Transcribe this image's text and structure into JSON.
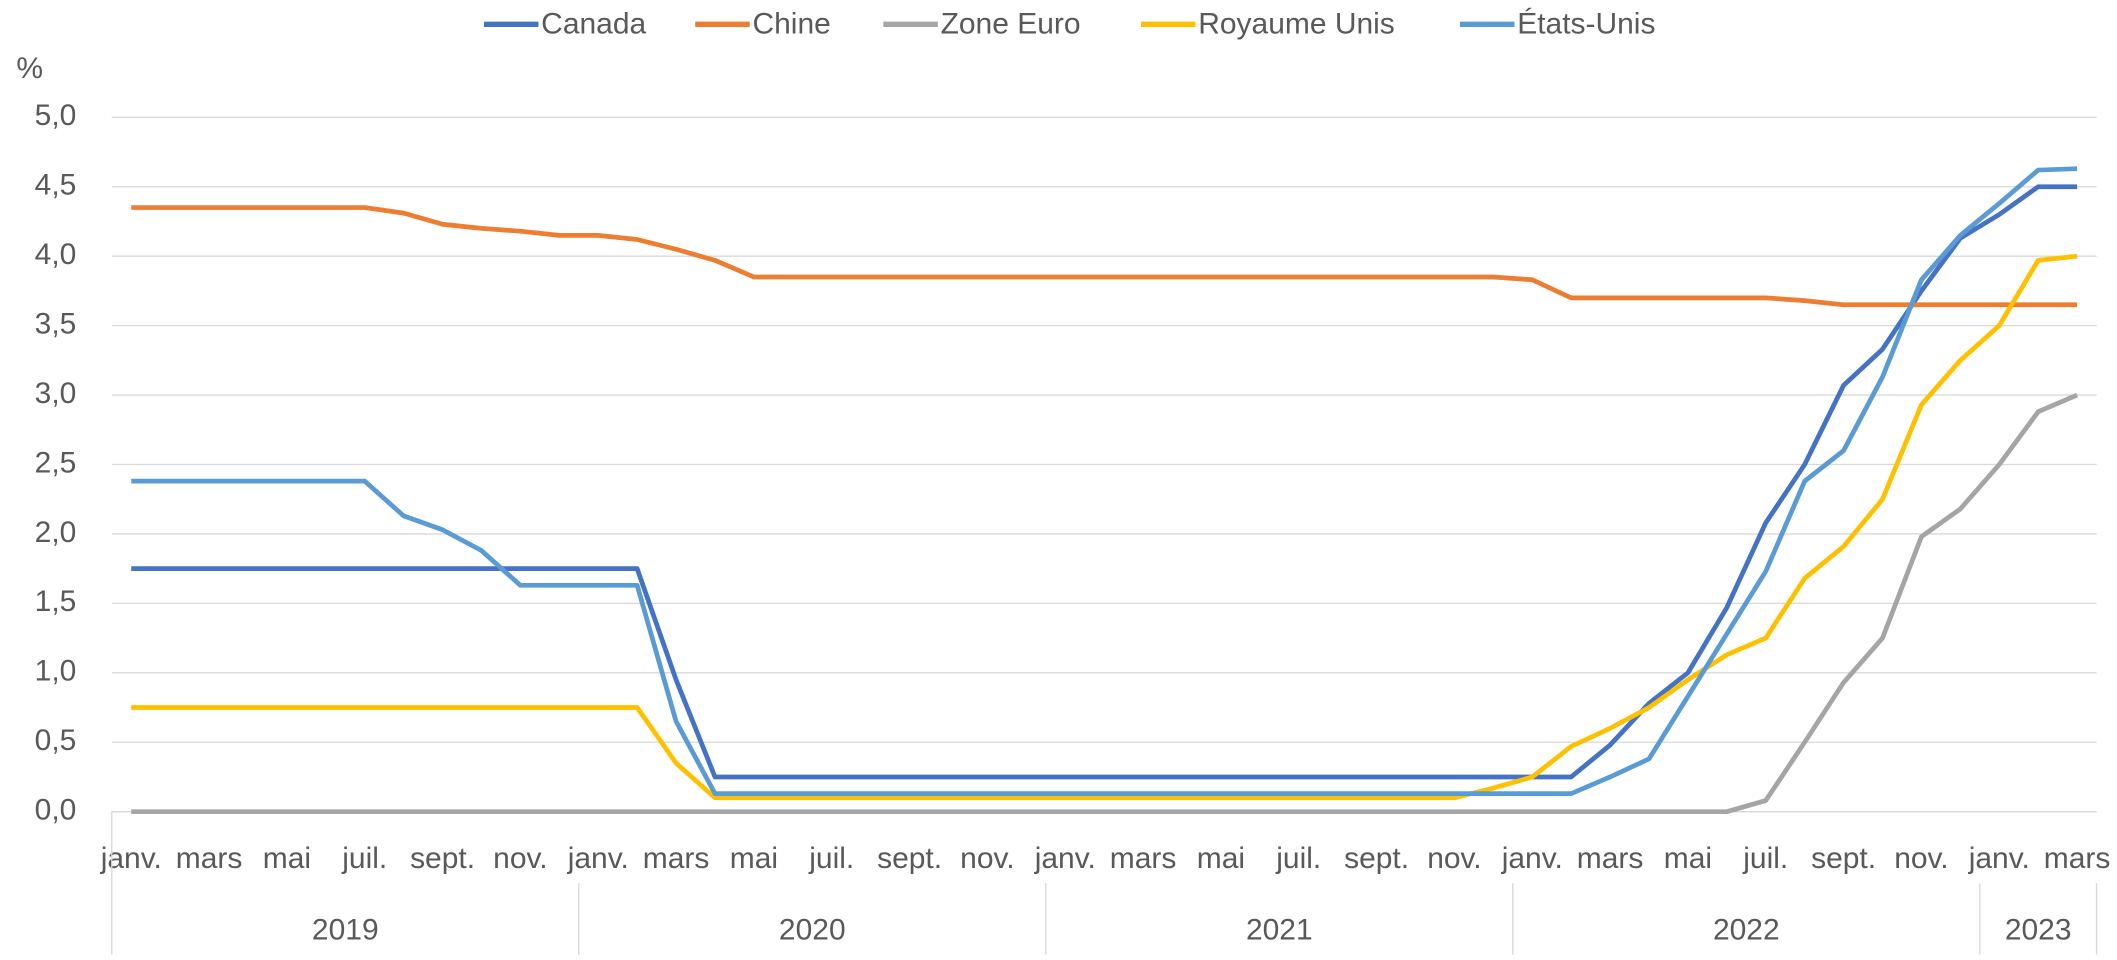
{
  "chart_data": {
    "type": "line",
    "ylabel": "%",
    "categories": [
      "janv.",
      null,
      "mars",
      null,
      "mai",
      null,
      "juil.",
      null,
      "sept.",
      null,
      "nov.",
      null,
      "janv.",
      null,
      "mars",
      null,
      "mai",
      null,
      "juil.",
      null,
      "sept.",
      null,
      "nov.",
      null,
      "janv.",
      null,
      "mars",
      null,
      "mai",
      null,
      "juil.",
      null,
      "sept.",
      null,
      "nov.",
      null,
      "janv.",
      null,
      "mars",
      null,
      "mai",
      null,
      "juil.",
      null,
      "sept.",
      null,
      "nov.",
      null,
      "janv.",
      null,
      "mars"
    ],
    "x_groups": [
      "2019",
      "2020",
      "2021",
      "2022",
      "2023"
    ],
    "ylim": [
      0,
      5
    ],
    "yticks": [
      {
        "value": 0,
        "label": "0,0"
      },
      {
        "value": 0.5,
        "label": "0,5"
      },
      {
        "value": 1,
        "label": "1,0"
      },
      {
        "value": 1.5,
        "label": "1,5"
      },
      {
        "value": 2,
        "label": "2,0"
      },
      {
        "value": 2.5,
        "label": "2,5"
      },
      {
        "value": 3,
        "label": "3,0"
      },
      {
        "value": 3.5,
        "label": "3,5"
      },
      {
        "value": 4,
        "label": "4,0"
      },
      {
        "value": 4.5,
        "label": "4,5"
      },
      {
        "value": 5,
        "label": "5,0"
      }
    ],
    "grid": true,
    "legend": "top",
    "series": [
      {
        "name": "Canada",
        "color": "#4472c4",
        "values": [
          1.75,
          1.75,
          1.75,
          1.75,
          1.75,
          1.75,
          1.75,
          1.75,
          1.75,
          1.75,
          1.75,
          1.75,
          1.75,
          1.75,
          0.95,
          0.25,
          0.25,
          0.25,
          0.25,
          0.25,
          0.25,
          0.25,
          0.25,
          0.25,
          0.25,
          0.25,
          0.25,
          0.25,
          0.25,
          0.25,
          0.25,
          0.25,
          0.25,
          0.25,
          0.25,
          0.25,
          0.25,
          0.25,
          0.48,
          0.78,
          1.0,
          1.47,
          2.08,
          2.5,
          3.07,
          3.33,
          3.75,
          4.13,
          4.3,
          4.5,
          4.5
        ]
      },
      {
        "name": "Chine",
        "color": "#ed7d31",
        "values": [
          4.35,
          4.35,
          4.35,
          4.35,
          4.35,
          4.35,
          4.35,
          4.31,
          4.23,
          4.2,
          4.18,
          4.15,
          4.15,
          4.12,
          4.05,
          3.97,
          3.85,
          3.85,
          3.85,
          3.85,
          3.85,
          3.85,
          3.85,
          3.85,
          3.85,
          3.85,
          3.85,
          3.85,
          3.85,
          3.85,
          3.85,
          3.85,
          3.85,
          3.85,
          3.85,
          3.85,
          3.83,
          3.7,
          3.7,
          3.7,
          3.7,
          3.7,
          3.7,
          3.68,
          3.65,
          3.65,
          3.65,
          3.65,
          3.65,
          3.65,
          3.65
        ]
      },
      {
        "name": "Zone Euro",
        "color": "#a5a5a5",
        "values": [
          0,
          0,
          0,
          0,
          0,
          0,
          0,
          0,
          0,
          0,
          0,
          0,
          0,
          0,
          0,
          0,
          0,
          0,
          0,
          0,
          0,
          0,
          0,
          0,
          0,
          0,
          0,
          0,
          0,
          0,
          0,
          0,
          0,
          0,
          0,
          0,
          0,
          0,
          0,
          0,
          0,
          0,
          0.08,
          0.5,
          0.93,
          1.25,
          1.98,
          2.18,
          2.5,
          2.88,
          3.0
        ]
      },
      {
        "name": "Royaume Unis",
        "color": "#ffc000",
        "values": [
          0.75,
          0.75,
          0.75,
          0.75,
          0.75,
          0.75,
          0.75,
          0.75,
          0.75,
          0.75,
          0.75,
          0.75,
          0.75,
          0.75,
          0.35,
          0.1,
          0.1,
          0.1,
          0.1,
          0.1,
          0.1,
          0.1,
          0.1,
          0.1,
          0.1,
          0.1,
          0.1,
          0.1,
          0.1,
          0.1,
          0.1,
          0.1,
          0.1,
          0.1,
          0.1,
          0.17,
          0.25,
          0.47,
          0.6,
          0.75,
          0.95,
          1.13,
          1.25,
          1.68,
          1.91,
          2.25,
          2.93,
          3.25,
          3.5,
          3.97,
          4.0
        ]
      },
      {
        "name": "États-Unis",
        "color": "#5b9bd5",
        "values": [
          2.38,
          2.38,
          2.38,
          2.38,
          2.38,
          2.38,
          2.38,
          2.13,
          2.03,
          1.88,
          1.63,
          1.63,
          1.63,
          1.63,
          0.65,
          0.13,
          0.13,
          0.13,
          0.13,
          0.13,
          0.13,
          0.13,
          0.13,
          0.13,
          0.13,
          0.13,
          0.13,
          0.13,
          0.13,
          0.13,
          0.13,
          0.13,
          0.13,
          0.13,
          0.13,
          0.13,
          0.13,
          0.13,
          0.25,
          0.38,
          0.83,
          1.28,
          1.73,
          2.38,
          2.6,
          3.13,
          3.83,
          4.15,
          4.38,
          4.62,
          4.63
        ]
      }
    ]
  }
}
